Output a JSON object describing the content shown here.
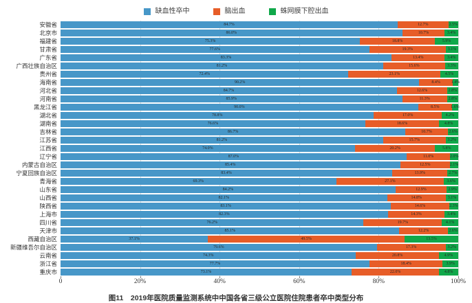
{
  "legend": [
    {
      "label": "缺血性卒中",
      "color": "#4797C8"
    },
    {
      "label": "脑出血",
      "color": "#E75D28"
    },
    {
      "label": "蛛网膜下腔出血",
      "color": "#10A84A"
    }
  ],
  "caption": "图11　2019年医院质量监测系统中中国各省三级公立医院住院患者卒中类型分布",
  "chart_data": {
    "type": "bar",
    "stacked": true,
    "orientation": "horizontal",
    "title": "图11　2019年医院质量监测系统中中国各省三级公立医院住院患者卒中类型分布",
    "xlim": [
      0,
      100
    ],
    "x_ticks": [
      "0",
      "20%",
      "40%",
      "60%",
      "80%",
      "100%"
    ],
    "gridline_positions": [
      20,
      40,
      60,
      80,
      100
    ],
    "value_suffix": "%",
    "grid": true,
    "legend_position": "top",
    "categories": [
      "安徽省",
      "北京市",
      "福建省",
      "甘肃省",
      "广东省",
      "广西壮族自治区",
      "贵州省",
      "海南省",
      "河北省",
      "河南省",
      "黑龙江省",
      "湖北省",
      "湖南省",
      "吉林省",
      "江苏省",
      "江西省",
      "辽宁省",
      "内蒙古自治区",
      "宁夏回族自治区",
      "青海省",
      "山东省",
      "山西省",
      "陕西省",
      "上海市",
      "四川省",
      "天津市",
      "西藏自治区",
      "新疆维吾尔自治区",
      "云南省",
      "浙江省",
      "重庆市"
    ],
    "series": [
      {
        "name": "缺血性卒中",
        "color": "#4797C8",
        "values": [
          84.7,
          86.0,
          75.3,
          77.6,
          83.3,
          81.2,
          72.4,
          90.2,
          84.7,
          85.9,
          90.0,
          78.8,
          76.6,
          86.7,
          81.2,
          74.0,
          87.0,
          85.4,
          83.4,
          69.3,
          84.2,
          82.1,
          83.1,
          82.3,
          76.2,
          85.1,
          37.1,
          79.6,
          74.3,
          77.7,
          73.1
        ]
      },
      {
        "name": "脑出血",
        "color": "#E75D28",
        "values": [
          12.7,
          10.7,
          18.8,
          19.3,
          13.4,
          15.6,
          23.1,
          8.4,
          12.6,
          11.3,
          8.5,
          17.0,
          18.6,
          10.7,
          15.7,
          20.2,
          11.0,
          12.5,
          13.9,
          27.1,
          12.9,
          14.8,
          14.6,
          14.3,
          19.7,
          12.2,
          49.5,
          17.3,
          20.8,
          18.4,
          22.0
        ]
      },
      {
        "name": "蛛网膜下腔出血",
        "color": "#10A84A",
        "values": [
          2.5,
          3.4,
          5.9,
          3.1,
          3.4,
          3.3,
          4.5,
          1.4,
          2.8,
          2.8,
          1.6,
          4.2,
          4.8,
          2.6,
          3.2,
          5.8,
          2.0,
          2.1,
          2.7,
          3.6,
          2.9,
          3.1,
          2.3,
          3.4,
          4.1,
          2.6,
          13.5,
          3.2,
          4.9,
          3.9,
          4.8
        ]
      }
    ]
  }
}
